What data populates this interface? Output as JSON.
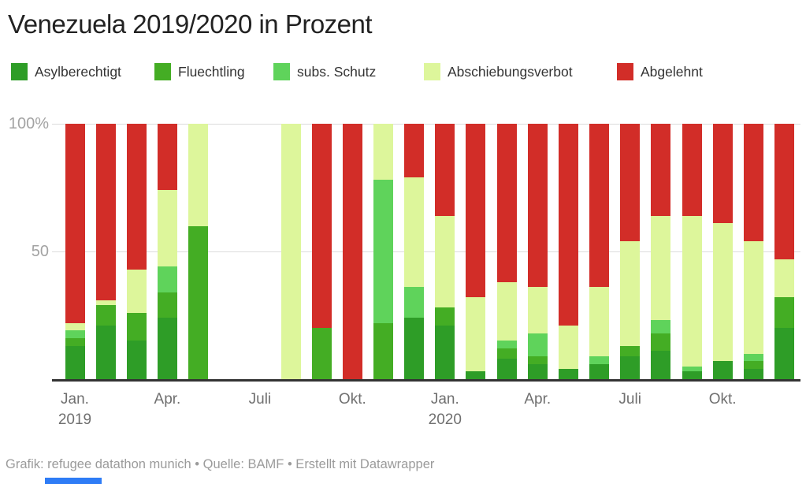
{
  "title": "Venezuela 2019/2020 in Prozent",
  "colors": {
    "asylberechtigt": "#2e9d27",
    "fluechtling": "#44ad24",
    "subs_schutz": "#5fd35b",
    "abschiebungsverbot": "#ddf69b",
    "abgelehnt": "#d22d28",
    "axis_line": "#333333",
    "gridline": "#dcdcdc"
  },
  "legend": [
    {
      "label": "Asylberechtigt",
      "color": "#2e9d27"
    },
    {
      "label": "Fluechtling",
      "color": "#44ad24"
    },
    {
      "label": "subs. Schutz",
      "color": "#5fd35b"
    },
    {
      "label": "Abschiebungsverbot",
      "color": "#ddf69b"
    },
    {
      "label": "Abgelehnt",
      "color": "#d22d28"
    }
  ],
  "y_axis": {
    "top_label": "100%",
    "mid_label": "50",
    "min": 0,
    "max": 100
  },
  "x_axis": {
    "ticks": [
      {
        "label": "Jan.",
        "year": "2019",
        "slot": 0
      },
      {
        "label": "Apr.",
        "year": "",
        "slot": 3
      },
      {
        "label": "Juli",
        "year": "",
        "slot": 6
      },
      {
        "label": "Okt.",
        "year": "",
        "slot": 9
      },
      {
        "label": "Jan.",
        "year": "2020",
        "slot": 12
      },
      {
        "label": "Apr.",
        "year": "",
        "slot": 15
      },
      {
        "label": "Juli",
        "year": "",
        "slot": 18
      },
      {
        "label": "Okt.",
        "year": "",
        "slot": 21
      }
    ]
  },
  "footer": {
    "text": "Grafik: refugee datathon munich • Quelle: BAMF • Erstellt mit Datawrapper"
  },
  "chart_data": {
    "type": "bar",
    "variant": "stacked-100-percent",
    "title": "Venezuela 2019/2020 in Prozent",
    "unit": "%",
    "ylim": [
      0,
      100
    ],
    "grid": "horizontal at 50 and 100",
    "legend_position": "top",
    "missing_months": [
      "Jun. 2019",
      "Jul. 2019"
    ],
    "categories": [
      "Jan. 2019",
      "Feb. 2019",
      "Mär. 2019",
      "Apr. 2019",
      "Mai 2019",
      "Jun. 2019",
      "Jul. 2019",
      "Aug. 2019",
      "Sep. 2019",
      "Okt. 2019",
      "Nov. 2019",
      "Dez. 2019",
      "Jan. 2020",
      "Feb. 2020",
      "Mär. 2020",
      "Apr. 2020",
      "Mai 2020",
      "Jun. 2020",
      "Jul. 2020",
      "Aug. 2020",
      "Sep. 2020",
      "Okt. 2020",
      "Nov. 2020",
      "Dez. 2020"
    ],
    "series": [
      {
        "name": "Asylberechtigt",
        "color": "#2e9d27",
        "values": [
          13,
          21,
          15,
          24,
          0,
          null,
          null,
          0,
          0,
          0,
          0,
          24,
          21,
          3,
          8,
          6,
          4,
          6,
          9,
          11,
          3,
          7,
          4,
          20
        ]
      },
      {
        "name": "Fluechtling",
        "color": "#44ad24",
        "values": [
          3,
          8,
          11,
          10,
          60,
          null,
          null,
          0,
          20,
          0,
          22,
          0,
          7,
          0,
          4,
          3,
          0,
          0,
          4,
          7,
          0,
          0,
          3,
          12
        ]
      },
      {
        "name": "subs. Schutz",
        "color": "#5fd35b",
        "values": [
          3,
          0,
          0,
          10,
          0,
          null,
          null,
          0,
          0,
          0,
          56,
          12,
          0,
          0,
          3,
          9,
          0,
          3,
          0,
          5,
          2,
          0,
          3,
          0
        ]
      },
      {
        "name": "Abschiebungsverbot",
        "color": "#ddf69b",
        "values": [
          3,
          2,
          17,
          30,
          40,
          null,
          null,
          100,
          0,
          0,
          22,
          43,
          36,
          29,
          23,
          18,
          17,
          27,
          41,
          41,
          59,
          54,
          44,
          15
        ]
      },
      {
        "name": "Abgelehnt",
        "color": "#d22d28",
        "values": [
          78,
          69,
          57,
          26,
          0,
          null,
          null,
          0,
          80,
          100,
          0,
          21,
          36,
          68,
          62,
          64,
          79,
          64,
          46,
          36,
          36,
          39,
          46,
          53
        ]
      }
    ]
  }
}
